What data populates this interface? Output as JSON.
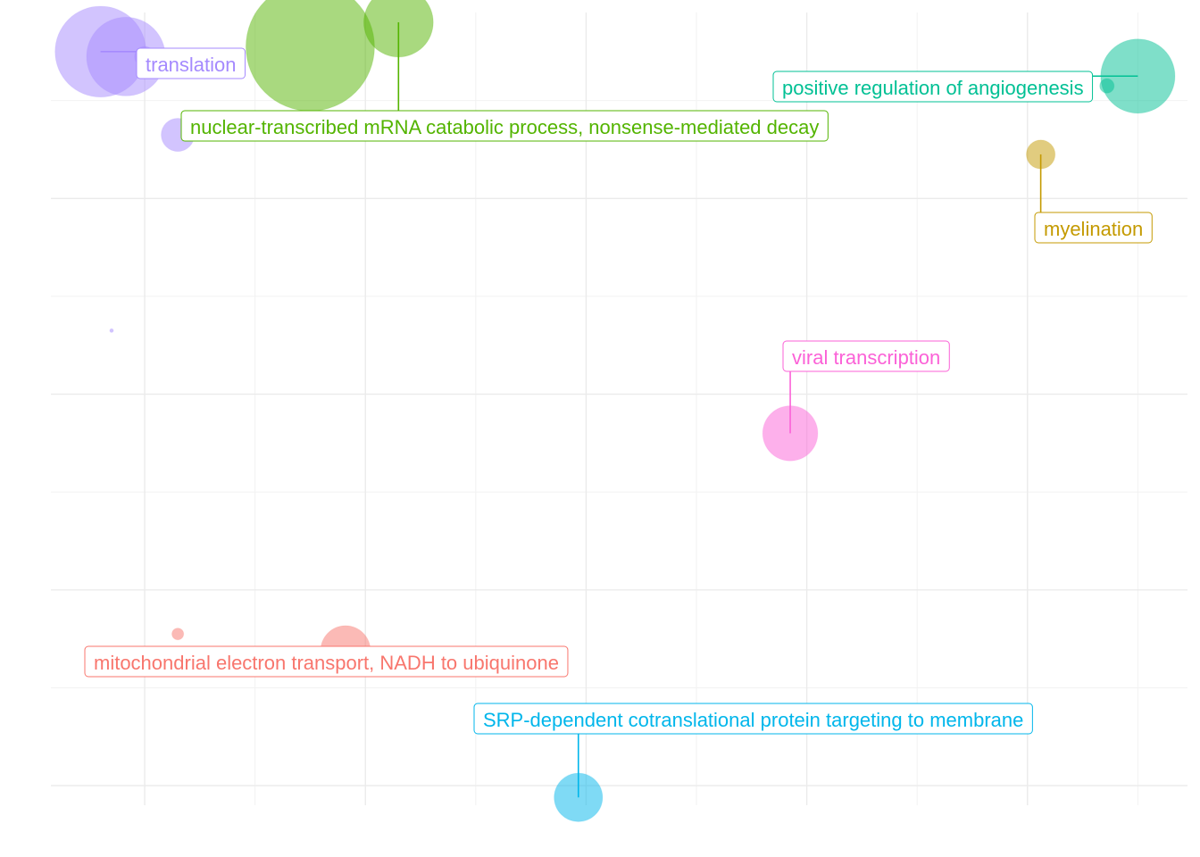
{
  "chart_data": {
    "type": "scatter",
    "subtype": "bubble",
    "title": "",
    "xlabel": "",
    "ylabel": "",
    "xlim": [
      0.15,
      10.45
    ],
    "ylim": [
      -0.2,
      7.9
    ],
    "x_gridlines": [
      1,
      3,
      5,
      7,
      9
    ],
    "y_gridlines": [
      0,
      2,
      4,
      6
    ],
    "grid": true,
    "legend": "none",
    "tick_labels_visible": false,
    "clusters": [
      {
        "name": "translation",
        "color": "#a58afe",
        "label_text": "translation",
        "points": [
          {
            "x": 0.6,
            "y": 7.5,
            "size": 60
          },
          {
            "x": 0.83,
            "y": 7.45,
            "size": 45
          },
          {
            "x": 1.0,
            "y": 7.45,
            "size": 3
          },
          {
            "x": 1.3,
            "y": 6.65,
            "size": 8
          },
          {
            "x": 0.7,
            "y": 4.65,
            "size": 0.1
          }
        ]
      },
      {
        "name": "nuclear-transcribed mRNA catabolic process, nonsense-mediated decay",
        "color": "#53b400",
        "label_text": "nuclear-transcribed mRNA catabolic process, nonsense-mediated decay",
        "points": [
          {
            "x": 2.5,
            "y": 7.55,
            "size": 120
          },
          {
            "x": 3.3,
            "y": 7.8,
            "size": 35
          }
        ]
      },
      {
        "name": "positive regulation of angiogenesis",
        "color": "#00c094",
        "label_text": "positive regulation of angiogenesis",
        "points": [
          {
            "x": 10.0,
            "y": 7.25,
            "size": 40
          },
          {
            "x": 9.72,
            "y": 7.15,
            "size": 1.5
          }
        ]
      },
      {
        "name": "myelination",
        "color": "#c49a00",
        "label_text": "myelination",
        "points": [
          {
            "x": 9.12,
            "y": 6.45,
            "size": 6
          }
        ]
      },
      {
        "name": "viral transcription",
        "color": "#fb61d7",
        "label_text": "viral transcription",
        "points": [
          {
            "x": 6.85,
            "y": 3.6,
            "size": 22
          }
        ]
      },
      {
        "name": "mitochondrial electron transport, NADH to ubiquinone",
        "color": "#f8766d",
        "label_text": "mitochondrial electron transport, NADH to ubiquinone",
        "points": [
          {
            "x": 1.3,
            "y": 1.55,
            "size": 1
          },
          {
            "x": 2.82,
            "y": 1.38,
            "size": 18
          }
        ]
      },
      {
        "name": "SRP-dependent cotranslational protein targeting to membrane",
        "color": "#00b6eb",
        "label_text": "SRP-dependent cotranslational protein targeting to membrane",
        "points": [
          {
            "x": 4.93,
            "y": -0.12,
            "size": 17
          }
        ]
      }
    ]
  }
}
